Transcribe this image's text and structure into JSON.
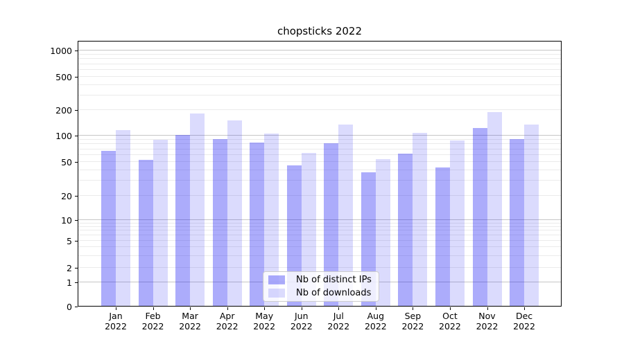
{
  "chart_data": {
    "type": "bar",
    "title": "chopsticks 2022",
    "categories": [
      "Jan",
      "Feb",
      "Mar",
      "Apr",
      "May",
      "Jun",
      "Jul",
      "Aug",
      "Sep",
      "Oct",
      "Nov",
      "Dec"
    ],
    "category_year_suffix": "2022",
    "series": [
      {
        "name": "Nb of distinct IPs",
        "color": "rgba(25,25,245,0.36)",
        "values": [
          66,
          52,
          100,
          90,
          82,
          45,
          80,
          37,
          61,
          42,
          121,
          90
        ]
      },
      {
        "name": "Nb of downloads",
        "color": "rgba(25,25,245,0.155)",
        "values": [
          113,
          88,
          179,
          148,
          103,
          62,
          133,
          53,
          106,
          86,
          185,
          133
        ]
      }
    ],
    "xlabel": "",
    "ylabel": "",
    "yticks": [
      0,
      1,
      2,
      5,
      10,
      20,
      50,
      100,
      200,
      500,
      1000
    ],
    "yscale": "symlog",
    "ylim": [
      0,
      1270
    ],
    "grid": "on",
    "grid_major_color": "#c6c6c6",
    "grid_minor_color": "#ebebeb",
    "legend_position": "lower center inside plot"
  }
}
